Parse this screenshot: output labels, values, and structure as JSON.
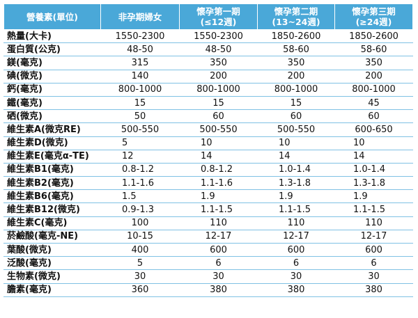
{
  "table": {
    "headers": [
      {
        "line1": "營養素(單位)",
        "line2": ""
      },
      {
        "line1": "非孕期婦女",
        "line2": ""
      },
      {
        "line1": "懷孕第一期",
        "line2": "(≤12週)"
      },
      {
        "line1": "懷孕第二期",
        "line2": "(13~24週)"
      },
      {
        "line1": "懷孕第三期",
        "line2": "(≥24週)"
      }
    ],
    "rows": [
      {
        "label": "熱量(大卡)",
        "cells": [
          "1550-2300",
          "1550-2300",
          "1850-2600",
          "1850-2600"
        ],
        "align": "center"
      },
      {
        "label": "蛋白質(公克)",
        "cells": [
          "48-50",
          "48-50",
          "58-60",
          "58-60"
        ],
        "align": "center"
      },
      {
        "label": "鎂(毫克)",
        "cells": [
          "315",
          "350",
          "350",
          "350"
        ],
        "align": "center"
      },
      {
        "label": "碘(微克)",
        "cells": [
          "140",
          "200",
          "200",
          "200"
        ],
        "align": "center"
      },
      {
        "label": "鈣(毫克)",
        "cells": [
          "800-1000",
          "800-1000",
          "800-1000",
          "800-1000"
        ],
        "align": "center"
      },
      {
        "label": "鐵(毫克)",
        "cells": [
          "15",
          "15",
          "15",
          "45"
        ],
        "align": "center"
      },
      {
        "label": "硒(微克)",
        "cells": [
          "50",
          "60",
          "60",
          "60"
        ],
        "align": "center"
      },
      {
        "label": "維生素A(微克RE)",
        "cells": [
          "500-550",
          "500-550",
          "500-550",
          "600-650"
        ],
        "align": "center"
      },
      {
        "label": "維生素D(微克)",
        "cells": [
          "5",
          "10",
          "10",
          "10"
        ],
        "align": "left"
      },
      {
        "label": "維生素E(毫克α-TE)",
        "cells": [
          "12",
          "14",
          "14",
          "14"
        ],
        "align": "left"
      },
      {
        "label": "維生素B1(毫克)",
        "cells": [
          "0.8-1.2",
          "0.8-1.2",
          "1.0-1.4",
          "1.0-1.4"
        ],
        "align": "left"
      },
      {
        "label": "維生素B2(毫克)",
        "cells": [
          "1.1-1.6",
          "1.1-1.6",
          "1.3-1.8",
          "1.3-1.8"
        ],
        "align": "left"
      },
      {
        "label": "維生素B6(毫克)",
        "cells": [
          "1.5",
          "1.9",
          "1.9",
          "1.9"
        ],
        "align": "left"
      },
      {
        "label": "維生素B12(微克)",
        "cells": [
          "0.9-1.3",
          "1.1-1.5",
          "1.1-1.5",
          "1.1-1.5"
        ],
        "align": "left"
      },
      {
        "label": "維生素C(毫克)",
        "cells": [
          "100",
          "110",
          "110",
          "110"
        ],
        "align": "center"
      },
      {
        "label": "菸鹼酸(毫克-NE)",
        "cells": [
          "10-15",
          "12-17",
          "12-17",
          "12-17"
        ],
        "align": "center"
      },
      {
        "label": "葉酸(微克)",
        "cells": [
          "400",
          "600",
          "600",
          "600"
        ],
        "align": "center"
      },
      {
        "label": "泛酸(毫克)",
        "cells": [
          "5",
          "6",
          "6",
          "6"
        ],
        "align": "center"
      },
      {
        "label": "生物素(微克)",
        "cells": [
          "30",
          "30",
          "30",
          "30"
        ],
        "align": "center"
      },
      {
        "label": "膽素(毫克)",
        "cells": [
          "360",
          "380",
          "380",
          "380"
        ],
        "align": "center"
      }
    ]
  },
  "colors": {
    "header_bg": "#4aa8d8",
    "header_text": "#ffffff",
    "row_line": "#7fc1e4"
  }
}
